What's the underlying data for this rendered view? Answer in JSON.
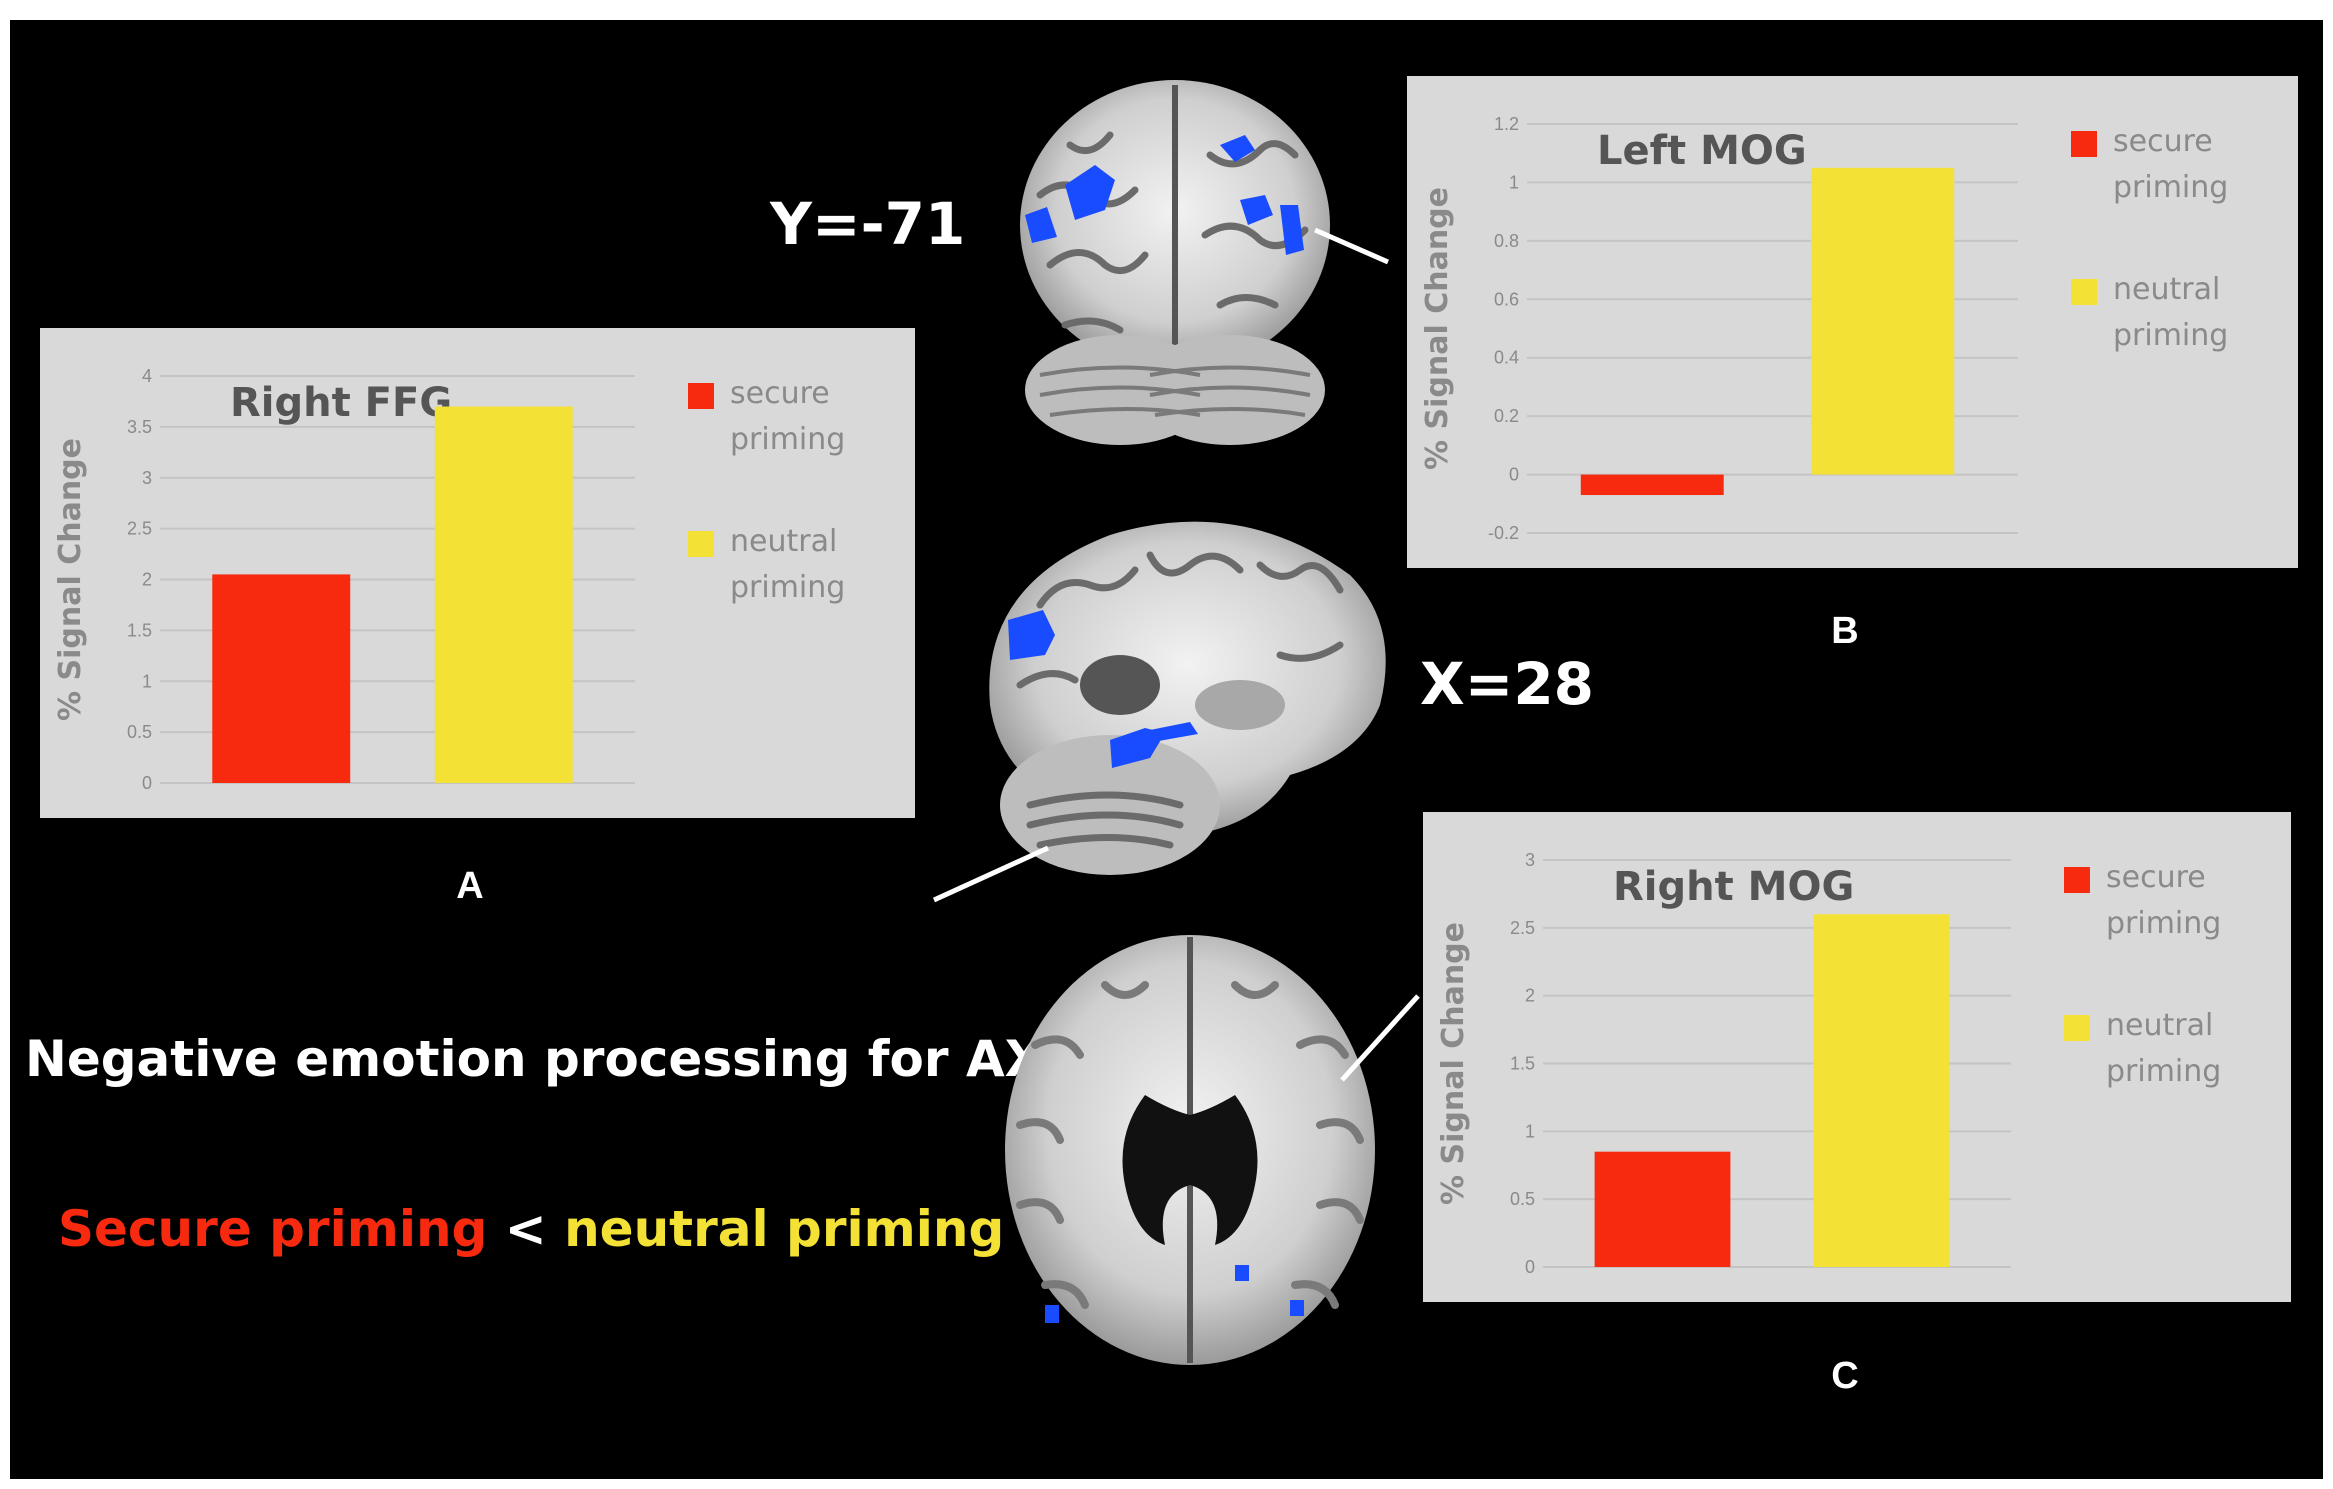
{
  "labels": {
    "coronal_slice": "Y=-71",
    "sagittal_slice": "X=28",
    "panel_a": "A",
    "panel_b": "B",
    "panel_c": "C"
  },
  "caption": {
    "line1": "Negative emotion processing for AX",
    "line2_secure": "Secure priming",
    "line2_op": " < ",
    "line2_neutral": "neutral priming"
  },
  "colors": {
    "secure": "#f7290f",
    "neutral": "#f4e136",
    "activation": "#1a4cff",
    "panel_bg": "#d9d9d9"
  },
  "chart_data": [
    {
      "type": "bar",
      "panel": "A",
      "title": "Right FFG",
      "ylabel": "% Signal Change",
      "ylim": [
        0,
        4
      ],
      "yticks": [
        "0",
        "0.5",
        "1",
        "1.5",
        "2",
        "2.5",
        "3",
        "3.5",
        "4"
      ],
      "categories": [
        "secure priming",
        "neutral priming"
      ],
      "values": [
        2.05,
        3.7
      ],
      "legend": [
        {
          "line1": "secure",
          "line2": "priming"
        },
        {
          "line1": "neutral",
          "line2": "priming"
        }
      ],
      "legend_position": "right",
      "grid": true
    },
    {
      "type": "bar",
      "panel": "B",
      "title": "Left MOG",
      "ylabel": "% Signal Change",
      "ylim": [
        -0.2,
        1.2
      ],
      "yticks": [
        "-0.2",
        "0",
        "0.2",
        "0.4",
        "0.6",
        "0.8",
        "1",
        "1.2"
      ],
      "categories": [
        "secure priming",
        "neutral priming"
      ],
      "values": [
        -0.07,
        1.05
      ],
      "legend": [
        {
          "line1": "secure",
          "line2": "priming"
        },
        {
          "line1": "neutral",
          "line2": "priming"
        }
      ],
      "legend_position": "right",
      "grid": true
    },
    {
      "type": "bar",
      "panel": "C",
      "title": "Right MOG",
      "ylabel": "% Signal Change",
      "ylim": [
        0,
        3
      ],
      "yticks": [
        "0",
        "0.5",
        "1",
        "1.5",
        "2",
        "2.5",
        "3"
      ],
      "categories": [
        "secure priming",
        "neutral priming"
      ],
      "values": [
        0.85,
        2.6
      ],
      "legend": [
        {
          "line1": "secure",
          "line2": "priming"
        },
        {
          "line1": "neutral",
          "line2": "priming"
        }
      ],
      "legend_position": "right",
      "grid": true
    }
  ]
}
